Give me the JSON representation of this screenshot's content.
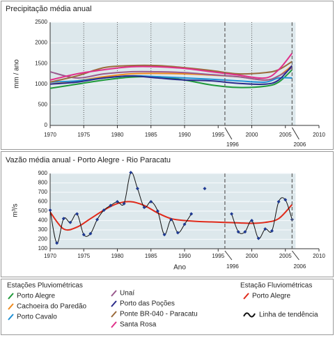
{
  "chart_data": [
    {
      "type": "line",
      "title": "Precipitação média anual",
      "y_label": "mm / ano",
      "xlim": [
        1970,
        2010
      ],
      "xticks": [
        1970,
        1975,
        1980,
        1985,
        1990,
        1995,
        2000,
        2005,
        2010
      ],
      "ylim": [
        0,
        2500
      ],
      "yticks": [
        0,
        500,
        1000,
        1500,
        2000,
        2500
      ],
      "grid": true,
      "xgrid": true,
      "vlines": [
        1996,
        2006
      ],
      "legend_title": "Estações Pluviométricas",
      "x": [
        1970,
        1974,
        1978,
        1982,
        1986,
        1990,
        1994,
        1998,
        2002,
        2004,
        2006
      ],
      "series": [
        {
          "name": "Porto Alegre",
          "color": "#1f9a3a",
          "values": [
            900,
            1000,
            1100,
            1170,
            1180,
            1100,
            980,
            920,
            950,
            1050,
            1350
          ]
        },
        {
          "name": "Cachoeira do Paredão",
          "color": "#f08a1c",
          "values": [
            1000,
            1080,
            1180,
            1250,
            1260,
            1250,
            1220,
            1180,
            1100,
            1200,
            1450
          ]
        },
        {
          "name": "Porto Cavalo",
          "color": "#1e90d6",
          "values": [
            1050,
            1080,
            1150,
            1200,
            1180,
            1150,
            1120,
            1080,
            1050,
            1150,
            1150
          ]
        },
        {
          "name": "Unaí",
          "color": "#9a5a8e",
          "values": [
            1300,
            1150,
            1250,
            1300,
            1300,
            1280,
            1230,
            1180,
            1100,
            1200,
            1400
          ]
        },
        {
          "name": "Porto das Poções",
          "color": "#2a2a8a",
          "values": [
            1000,
            1050,
            1150,
            1200,
            1150,
            1100,
            1080,
            1020,
            1000,
            1100,
            1450
          ]
        },
        {
          "name": "Ponte BR-040 - Paracatu",
          "color": "#9a6a3a",
          "values": [
            1050,
            1200,
            1400,
            1450,
            1450,
            1400,
            1330,
            1250,
            1280,
            1350,
            1550
          ]
        },
        {
          "name": "Santa Rosa",
          "color": "#e0308a",
          "values": [
            1100,
            1250,
            1350,
            1420,
            1420,
            1380,
            1300,
            1220,
            1150,
            1350,
            1750
          ]
        }
      ]
    },
    {
      "type": "line",
      "title": "Vazão média anual - Porto Alegre - Rio Paracatu",
      "y_label": "m³/s",
      "x_label": "Ano",
      "xlim": [
        1970,
        2010
      ],
      "xticks": [
        1970,
        1975,
        1980,
        1985,
        1990,
        1995,
        2000,
        2005,
        2010
      ],
      "ylim": [
        100,
        900
      ],
      "yticks": [
        100,
        200,
        300,
        400,
        500,
        600,
        700,
        800,
        900
      ],
      "grid": true,
      "xgrid": false,
      "vlines": [
        1996,
        2006
      ],
      "legend_title": "Estação Fluviométricas",
      "series": [
        {
          "name": "Porto Alegre",
          "color": "#e02a1a",
          "x": [
            1970,
            1972,
            1974,
            1976,
            1978,
            1980,
            1982,
            1984,
            1986,
            1988,
            1990,
            1992,
            1994,
            1996,
            1998,
            2000,
            2002,
            2004,
            2006
          ],
          "values": [
            490,
            310,
            330,
            420,
            510,
            580,
            600,
            560,
            480,
            420,
            400,
            390,
            385,
            380,
            375,
            370,
            380,
            420,
            570
          ]
        },
        {
          "name": "Linha de tendência",
          "color": "#111111",
          "marker_color": "#1f3a93",
          "x": [
            1970,
            1971,
            1972,
            1973,
            1974,
            1975,
            1976,
            1977,
            1978,
            1979,
            1980,
            1981,
            1982,
            1983,
            1984,
            1985,
            1986,
            1987,
            1988,
            1989,
            1990,
            1991,
            1992,
            1993,
            1994,
            1995,
            1996,
            1997,
            1998,
            1999,
            2000,
            2001,
            2002,
            2003,
            2004,
            2005,
            2006
          ],
          "values": [
            510,
            160,
            420,
            380,
            470,
            250,
            260,
            410,
            510,
            560,
            600,
            580,
            910,
            740,
            540,
            600,
            500,
            250,
            410,
            270,
            360,
            470,
            null,
            740,
            null,
            null,
            null,
            470,
            280,
            280,
            400,
            210,
            310,
            290,
            600,
            620,
            410
          ]
        }
      ]
    }
  ]
}
